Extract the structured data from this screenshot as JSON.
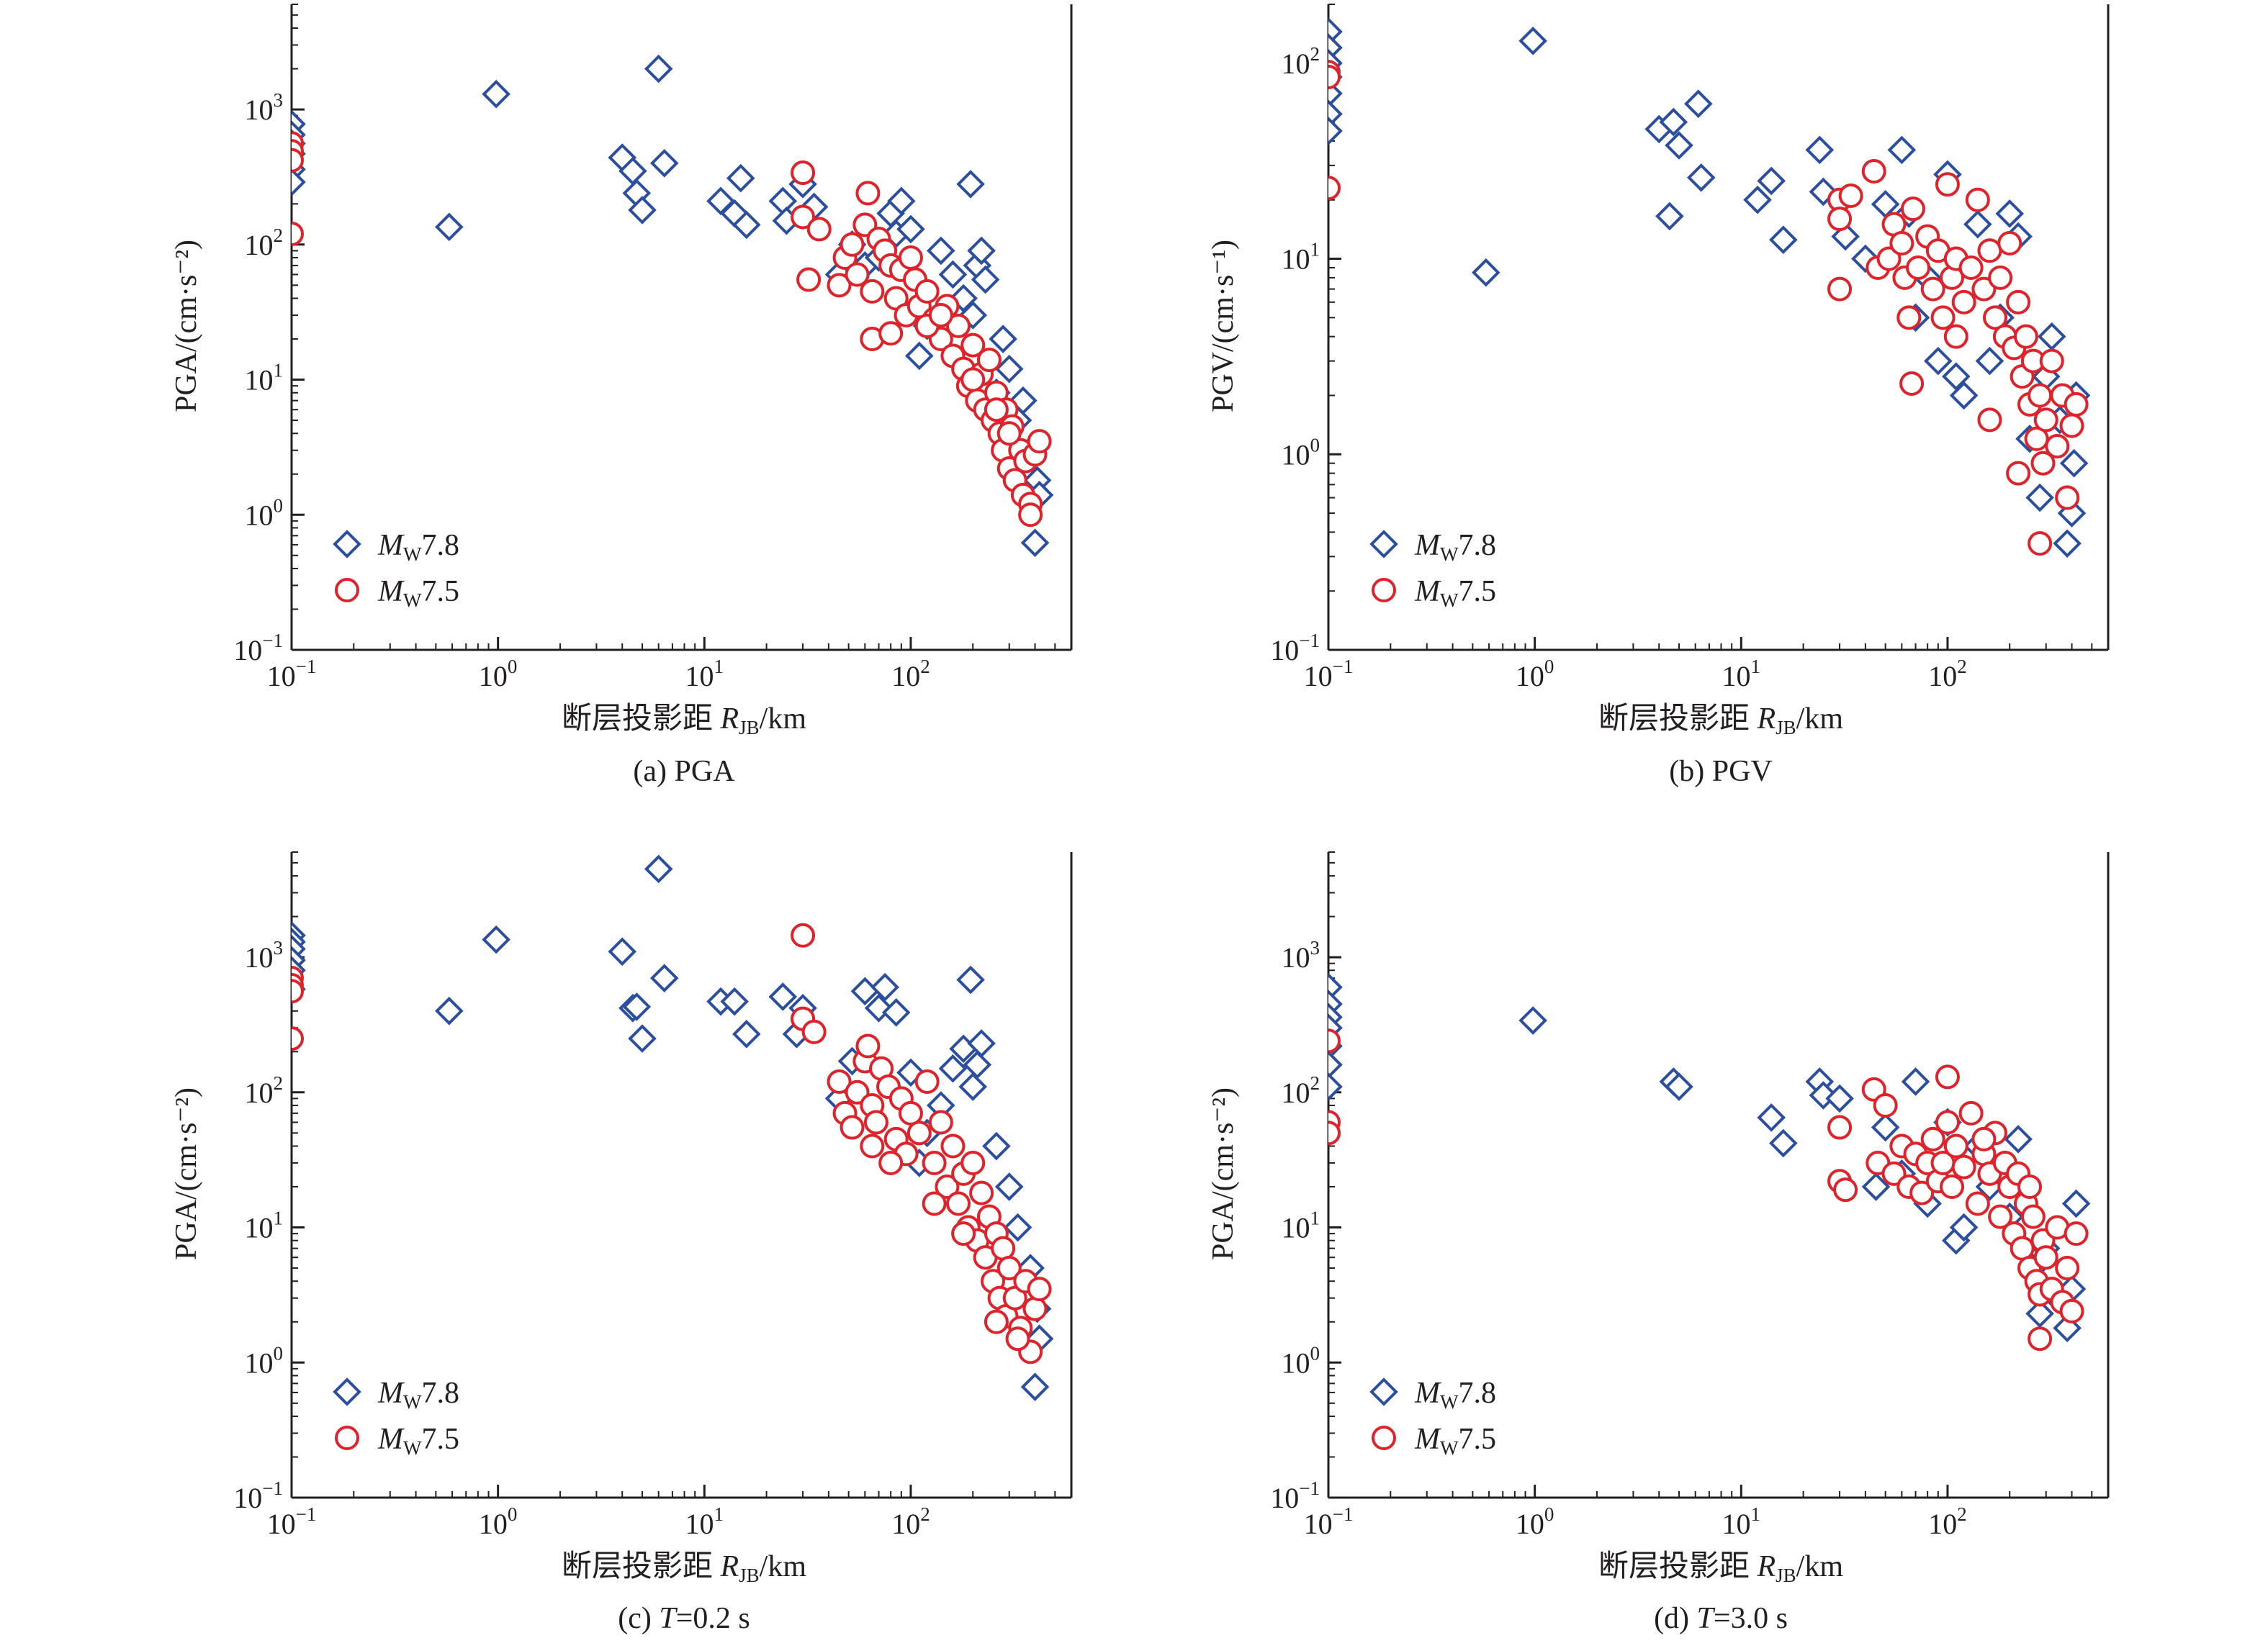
{
  "figure": {
    "colors": {
      "mw78": "#2b4ea0",
      "mw75": "#e0232a",
      "axis": "#231f20"
    },
    "legend": {
      "mw78": {
        "symbol": "M",
        "sub": "W",
        "value": "7.8",
        "marker": "diamond"
      },
      "mw75": {
        "symbol": "M",
        "sub": "W",
        "value": "7.5",
        "marker": "circle"
      }
    },
    "xaxis": {
      "label_main": "断层投影距 ",
      "label_var": "R",
      "label_sub": "JB",
      "label_unit": "/km"
    }
  },
  "chart_data": [
    {
      "type": "scatter",
      "panel": "a",
      "caption": "(a) PGA",
      "ylabel": "PGA/(cm·s⁻²)",
      "xscale": "log",
      "yscale": "log",
      "xlim": [
        0.1,
        600
      ],
      "ylim": [
        0.1,
        6000
      ],
      "xticks": [
        0.1,
        1,
        10,
        100
      ],
      "yticks": [
        0.1,
        1,
        10,
        100,
        1000
      ],
      "legend_position": "lower-left",
      "series": [
        {
          "name": "MW7.8",
          "marker": "diamond",
          "x": [
            0.1,
            0.1,
            0.1,
            0.1,
            0.1,
            0.1,
            0.58,
            0.98,
            4.0,
            4.5,
            4.7,
            5.0,
            6.0,
            6.4,
            12,
            14,
            15,
            16,
            24,
            25,
            30,
            34,
            45,
            52,
            60,
            70,
            80,
            85,
            90,
            100,
            110,
            120,
            140,
            160,
            180,
            195,
            200,
            210,
            220,
            230,
            260,
            280,
            300,
            330,
            350,
            380,
            400,
            410,
            420
          ],
          "y": [
            780,
            650,
            560,
            470,
            360,
            290,
            135,
            1300,
            440,
            350,
            240,
            180,
            2000,
            400,
            210,
            170,
            310,
            140,
            210,
            150,
            280,
            190,
            60,
            100,
            70,
            80,
            170,
            120,
            210,
            130,
            15,
            25,
            90,
            60,
            40,
            280,
            30,
            70,
            90,
            55,
            8,
            20,
            12,
            5,
            7,
            3,
            0.62,
            1.8,
            1.4
          ]
        },
        {
          "name": "MW7.5",
          "marker": "circle",
          "x": [
            0.1,
            0.1,
            0.1,
            0.1,
            30,
            30,
            32,
            36,
            45,
            48,
            52,
            55,
            60,
            62,
            65,
            70,
            75,
            80,
            85,
            90,
            95,
            100,
            105,
            110,
            120,
            130,
            140,
            150,
            160,
            170,
            180,
            190,
            200,
            210,
            220,
            230,
            240,
            250,
            260,
            270,
            280,
            290,
            300,
            310,
            320,
            340,
            350,
            360,
            380,
            400,
            420,
            65,
            80,
            120,
            140,
            200,
            260,
            300,
            380
          ],
          "y": [
            560,
            490,
            420,
            120,
            340,
            160,
            55,
            130,
            50,
            80,
            100,
            60,
            140,
            240,
            45,
            110,
            90,
            70,
            40,
            65,
            30,
            80,
            55,
            35,
            45,
            28,
            20,
            35,
            15,
            25,
            12,
            9,
            18,
            7,
            11,
            6,
            14,
            5,
            8,
            4,
            3,
            6,
            2.2,
            4.5,
            1.8,
            3,
            1.4,
            2.5,
            1.2,
            2.8,
            3.5,
            20,
            22,
            25,
            30,
            10,
            6,
            4,
            1.0
          ]
        }
      ]
    },
    {
      "type": "scatter",
      "panel": "b",
      "caption": "(b) PGV",
      "ylabel": "PGV/(cm·s⁻¹)",
      "xscale": "log",
      "yscale": "log",
      "xlim": [
        0.1,
        600
      ],
      "ylim": [
        0.1,
        200
      ],
      "xticks": [
        0.1,
        1,
        10,
        100
      ],
      "yticks": [
        0.1,
        1,
        10,
        100
      ],
      "legend_position": "lower-left",
      "series": [
        {
          "name": "MW7.8",
          "marker": "diamond",
          "x": [
            0.1,
            0.1,
            0.1,
            0.1,
            0.1,
            0.1,
            0.1,
            0.58,
            0.98,
            4.0,
            4.5,
            4.7,
            5.0,
            6.2,
            6.4,
            12,
            14,
            16,
            24,
            25,
            32,
            40,
            50,
            60,
            65,
            70,
            80,
            90,
            100,
            110,
            120,
            140,
            160,
            180,
            200,
            220,
            250,
            280,
            300,
            320,
            350,
            380,
            400,
            410,
            420
          ],
          "y": [
            145,
            120,
            100,
            85,
            70,
            55,
            45,
            8.5,
            130,
            46,
            16.5,
            50,
            38,
            62,
            26,
            20,
            25,
            12.5,
            36,
            22,
            13,
            10,
            19,
            36,
            17,
            5,
            8,
            3,
            27,
            2.5,
            2,
            15,
            3,
            5,
            17,
            13,
            1.2,
            0.6,
            2.5,
            4,
            1.5,
            0.35,
            0.5,
            0.9,
            2
          ]
        },
        {
          "name": "MW7.5",
          "marker": "circle",
          "x": [
            0.1,
            0.1,
            0.1,
            30,
            30,
            30,
            34,
            44,
            46,
            52,
            55,
            60,
            62,
            65,
            68,
            72,
            80,
            85,
            90,
            95,
            100,
            105,
            110,
            120,
            130,
            140,
            150,
            160,
            170,
            180,
            190,
            200,
            210,
            220,
            230,
            240,
            250,
            260,
            270,
            280,
            290,
            300,
            320,
            340,
            360,
            380,
            400,
            420,
            67,
            110,
            160,
            220,
            280
          ],
          "y": [
            90,
            85,
            23,
            20,
            16,
            7,
            21,
            28,
            9,
            10,
            15,
            12,
            8,
            5,
            18,
            9,
            13,
            7,
            11,
            5,
            24,
            8,
            10,
            6,
            9,
            20,
            7,
            11,
            5,
            8,
            4,
            12,
            3.5,
            6,
            2.5,
            4,
            1.8,
            3,
            1.2,
            2,
            0.9,
            1.5,
            3,
            1.1,
            2,
            0.6,
            1.4,
            1.8,
            2.3,
            4,
            1.5,
            0.8,
            0.35
          ]
        }
      ]
    },
    {
      "type": "scatter",
      "panel": "c",
      "caption": "(c) T=0.2 s",
      "ylabel": "PGA/(cm·s⁻²)",
      "xscale": "log",
      "yscale": "log",
      "xlim": [
        0.1,
        600
      ],
      "ylim": [
        0.1,
        6000
      ],
      "xticks": [
        0.1,
        1,
        10,
        100
      ],
      "yticks": [
        0.1,
        1,
        10,
        100,
        1000
      ],
      "legend_position": "lower-left",
      "series": [
        {
          "name": "MW7.8",
          "marker": "diamond",
          "x": [
            0.1,
            0.1,
            0.1,
            0.1,
            0.1,
            0.1,
            0.58,
            0.98,
            4.0,
            4.5,
            4.7,
            5.0,
            6.0,
            6.4,
            12,
            14,
            16,
            24,
            28,
            30,
            45,
            52,
            60,
            70,
            75,
            85,
            100,
            110,
            120,
            140,
            160,
            180,
            195,
            200,
            210,
            220,
            260,
            300,
            330,
            380,
            400,
            410,
            420
          ],
          "y": [
            1450,
            1300,
            1150,
            950,
            800,
            580,
            400,
            1350,
            1100,
            420,
            430,
            250,
            4500,
            700,
            470,
            470,
            270,
            510,
            270,
            420,
            90,
            170,
            560,
            420,
            600,
            390,
            140,
            30,
            50,
            80,
            150,
            210,
            680,
            110,
            160,
            230,
            40,
            20,
            10,
            5,
            0.66,
            2.5,
            1.5
          ]
        },
        {
          "name": "MW7.5",
          "marker": "circle",
          "x": [
            0.1,
            0.1,
            0.1,
            0.1,
            30,
            30,
            34,
            45,
            48,
            52,
            55,
            60,
            62,
            65,
            68,
            72,
            78,
            85,
            90,
            95,
            100,
            110,
            120,
            130,
            140,
            150,
            160,
            170,
            180,
            190,
            200,
            210,
            220,
            230,
            240,
            250,
            260,
            270,
            280,
            290,
            300,
            320,
            340,
            360,
            380,
            400,
            420,
            65,
            80,
            130,
            180,
            260,
            330
          ],
          "y": [
            700,
            620,
            560,
            250,
            1450,
            350,
            280,
            120,
            70,
            55,
            100,
            170,
            220,
            80,
            60,
            150,
            110,
            45,
            90,
            35,
            70,
            50,
            120,
            30,
            60,
            20,
            40,
            15,
            25,
            10,
            30,
            8,
            18,
            6,
            12,
            4,
            9,
            3,
            7,
            2.2,
            5,
            3,
            1.8,
            4,
            1.2,
            2.5,
            3.5,
            40,
            30,
            15,
            9,
            2.0,
            1.5
          ]
        }
      ]
    },
    {
      "type": "scatter",
      "panel": "d",
      "caption": "(d) T=3.0 s",
      "ylabel": "PGA/(cm·s⁻²)",
      "xscale": "log",
      "yscale": "log",
      "xlim": [
        0.1,
        600
      ],
      "ylim": [
        0.1,
        6000
      ],
      "xticks": [
        0.1,
        1,
        10,
        100
      ],
      "yticks": [
        0.1,
        1,
        10,
        100,
        1000
      ],
      "legend_position": "lower-left",
      "series": [
        {
          "name": "MW7.8",
          "marker": "diamond",
          "x": [
            0.1,
            0.1,
            0.1,
            0.1,
            0.1,
            0.1,
            0.1,
            0.98,
            4.7,
            5.0,
            14,
            16,
            24,
            25,
            30,
            45,
            50,
            60,
            70,
            80,
            100,
            110,
            120,
            140,
            160,
            200,
            220,
            260,
            280,
            300,
            340,
            380,
            400,
            420
          ],
          "y": [
            600,
            450,
            360,
            300,
            220,
            160,
            110,
            340,
            120,
            110,
            65,
            42,
            120,
            95,
            90,
            20,
            55,
            25,
            120,
            15,
            60,
            8,
            10,
            40,
            20,
            12,
            45,
            5,
            2.3,
            7,
            3,
            1.8,
            3.5,
            15
          ]
        },
        {
          "name": "MW7.5",
          "marker": "circle",
          "x": [
            0.1,
            0.1,
            0.1,
            30,
            30,
            32,
            44,
            46,
            50,
            55,
            60,
            65,
            70,
            75,
            80,
            85,
            90,
            95,
            100,
            105,
            110,
            120,
            130,
            140,
            150,
            160,
            170,
            180,
            190,
            200,
            210,
            220,
            230,
            240,
            250,
            260,
            270,
            280,
            290,
            300,
            320,
            340,
            360,
            380,
            400,
            420,
            100,
            150,
            250,
            280
          ],
          "y": [
            240,
            60,
            50,
            55,
            22,
            19,
            105,
            30,
            80,
            25,
            40,
            20,
            35,
            18,
            30,
            45,
            22,
            30,
            130,
            20,
            40,
            28,
            70,
            15,
            35,
            25,
            50,
            12,
            30,
            20,
            9,
            25,
            7,
            15,
            5,
            12,
            4,
            3.2,
            8,
            6,
            3.5,
            10,
            2.8,
            5,
            2.4,
            9,
            60,
            45,
            20,
            1.5
          ]
        }
      ]
    }
  ]
}
